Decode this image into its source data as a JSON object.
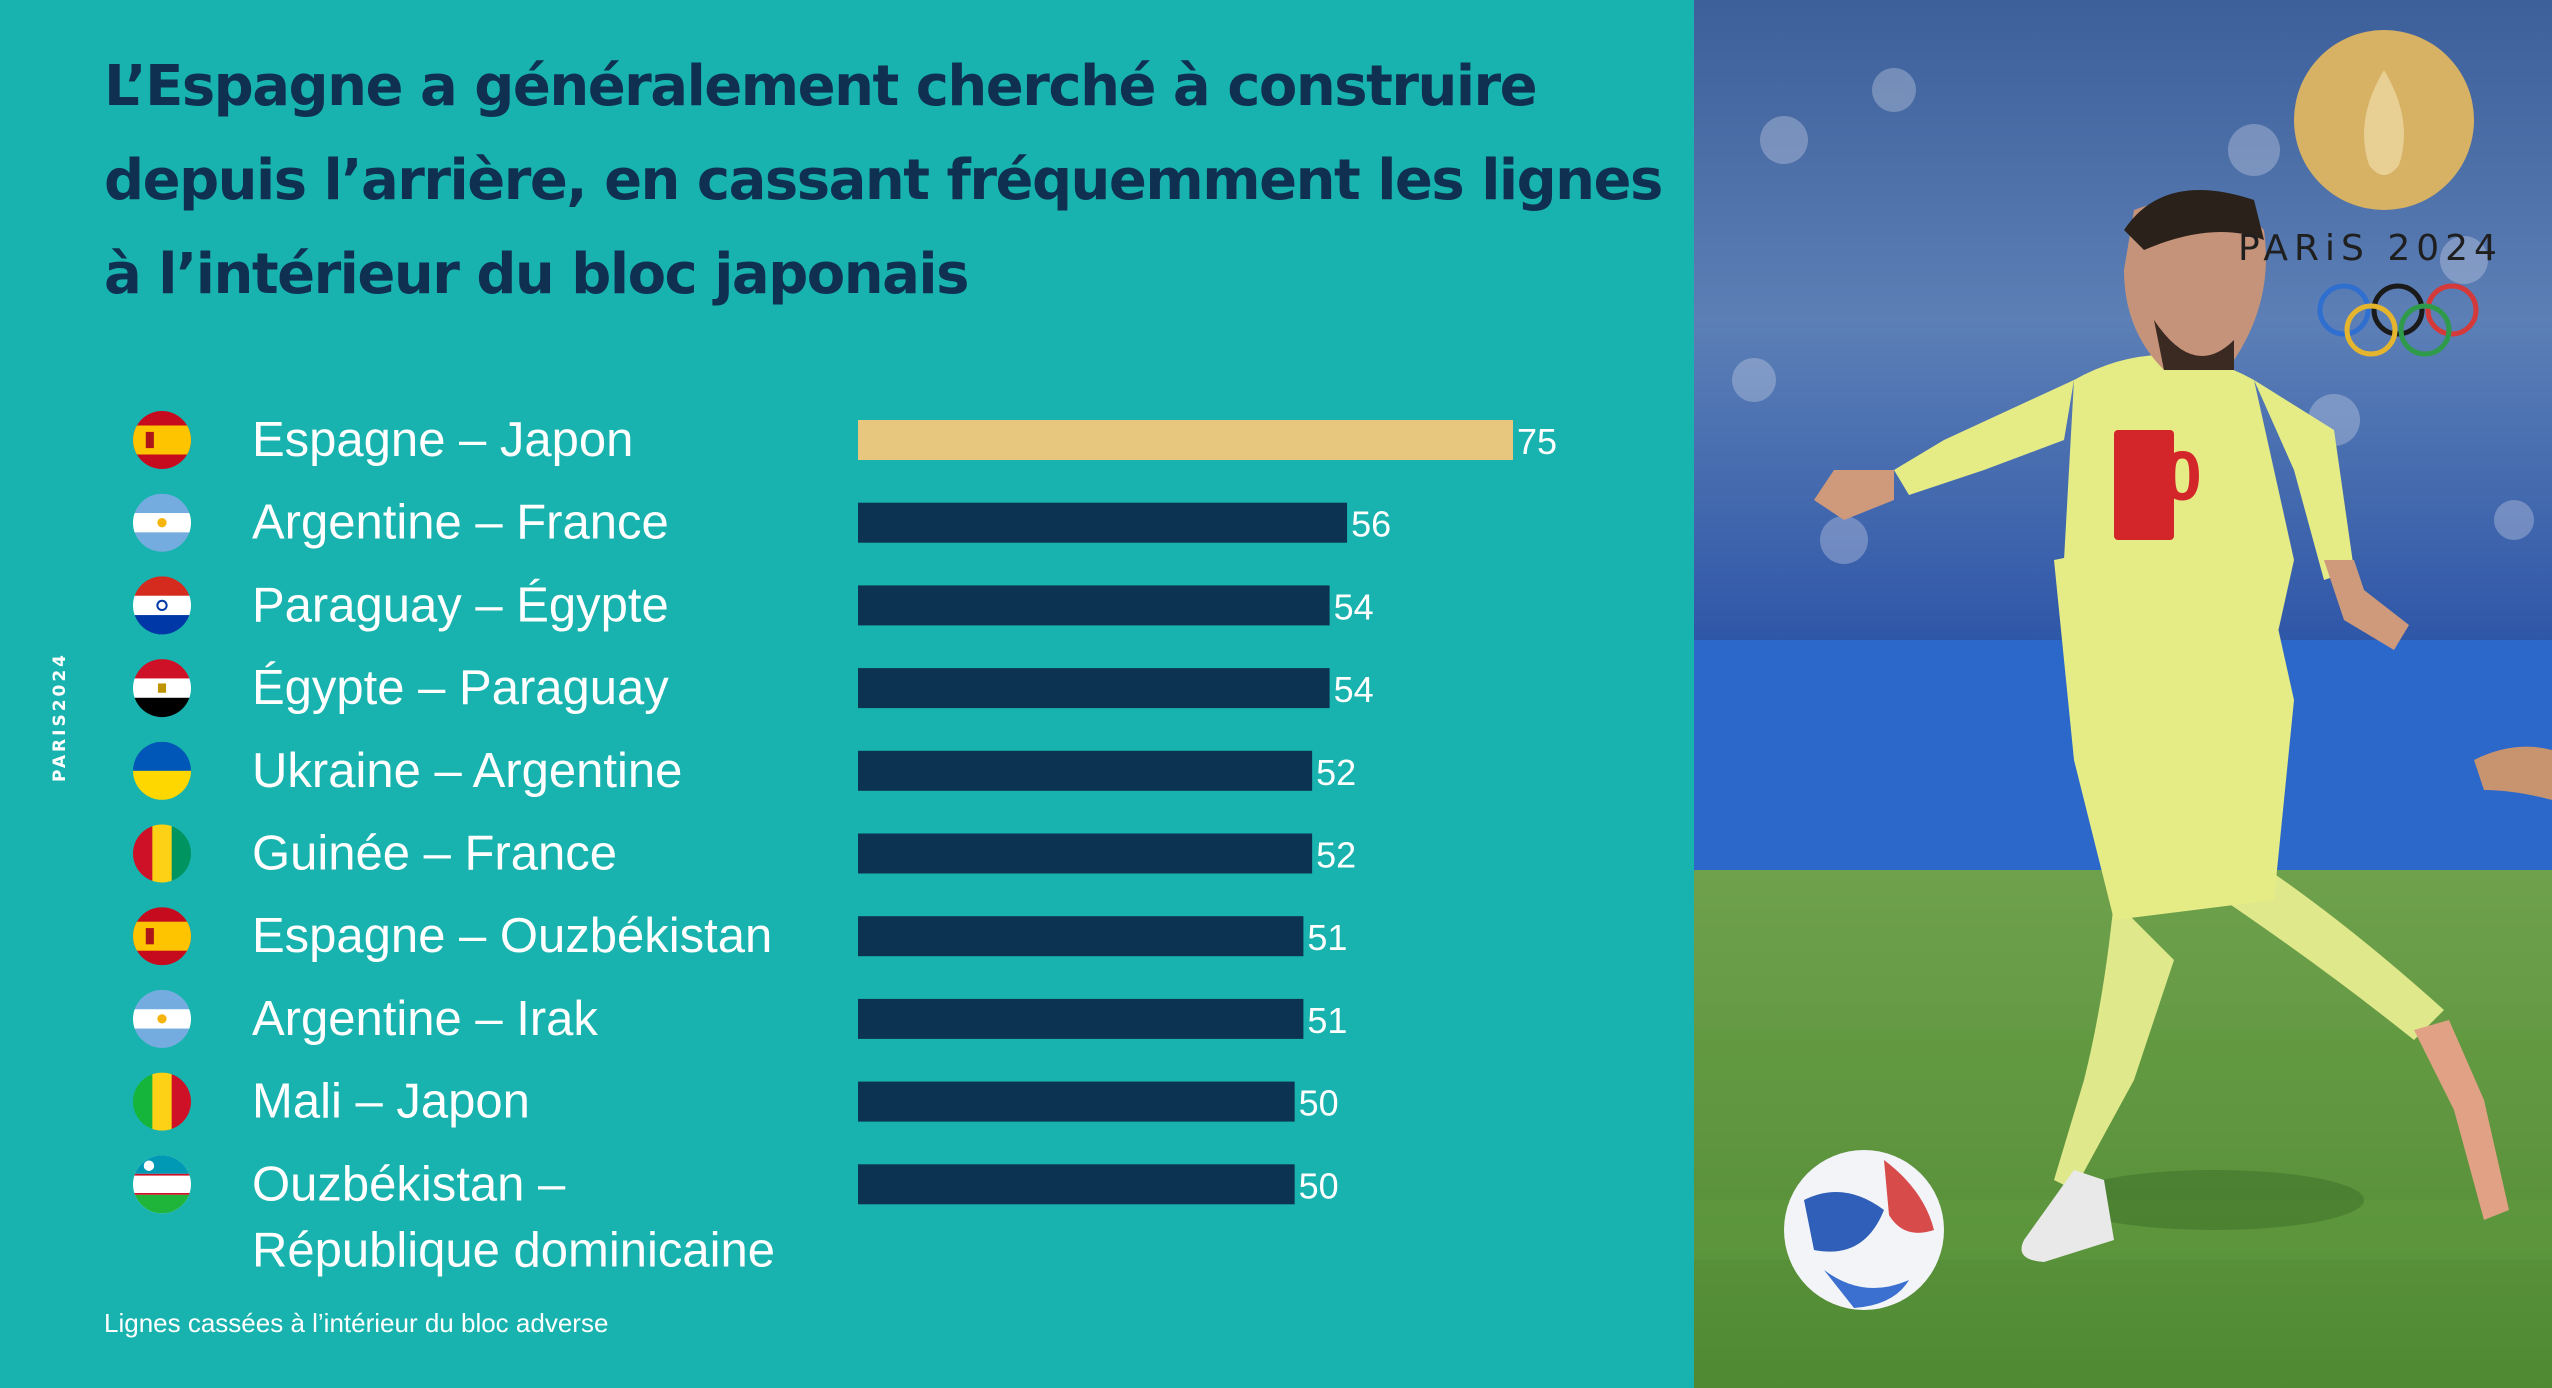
{
  "title": "L’Espagne a généralement cherché à construire depuis l’arrière, en cassant fréquemment les lignes à l’intérieur du bloc japonais",
  "side_brand": "PARIS2024",
  "photo_brand": "PARiS 2024",
  "colors": {
    "background": "#18b3ae",
    "title": "#0f3050",
    "bar": "#0d3352",
    "bar_highlight": "#e6c77d",
    "text": "#ffffff"
  },
  "chart_data": {
    "type": "bar",
    "orientation": "horizontal",
    "xlabel": "Lignes cassées à l’intérieur du bloc adverse",
    "xlim": [
      0,
      75
    ],
    "highlight_index": 0,
    "rows": [
      {
        "label": "Espagne – Japon",
        "value": 75,
        "flag": "spain-flag-icon"
      },
      {
        "label": "Argentine – France",
        "value": 56,
        "flag": "argentina-flag-icon"
      },
      {
        "label": "Paraguay – Égypte",
        "value": 54,
        "flag": "paraguay-flag-icon"
      },
      {
        "label": "Égypte – Paraguay",
        "value": 54,
        "flag": "egypt-flag-icon"
      },
      {
        "label": "Ukraine – Argentine",
        "value": 52,
        "flag": "ukraine-flag-icon"
      },
      {
        "label": "Guinée – France",
        "value": 52,
        "flag": "guinea-flag-icon"
      },
      {
        "label": "Espagne – Ouzbékistan",
        "value": 51,
        "flag": "spain-flag-icon"
      },
      {
        "label": "Argentine – Irak",
        "value": 51,
        "flag": "argentina-flag-icon"
      },
      {
        "label": "Mali – Japon",
        "value": 50,
        "flag": "mali-flag-icon"
      },
      {
        "label": "Ouzbékistan – République dominicaine",
        "lines": [
          "Ouzbékistan –",
          "République dominicaine"
        ],
        "value": 50,
        "flag": "uzbekistan-flag-icon"
      }
    ]
  }
}
